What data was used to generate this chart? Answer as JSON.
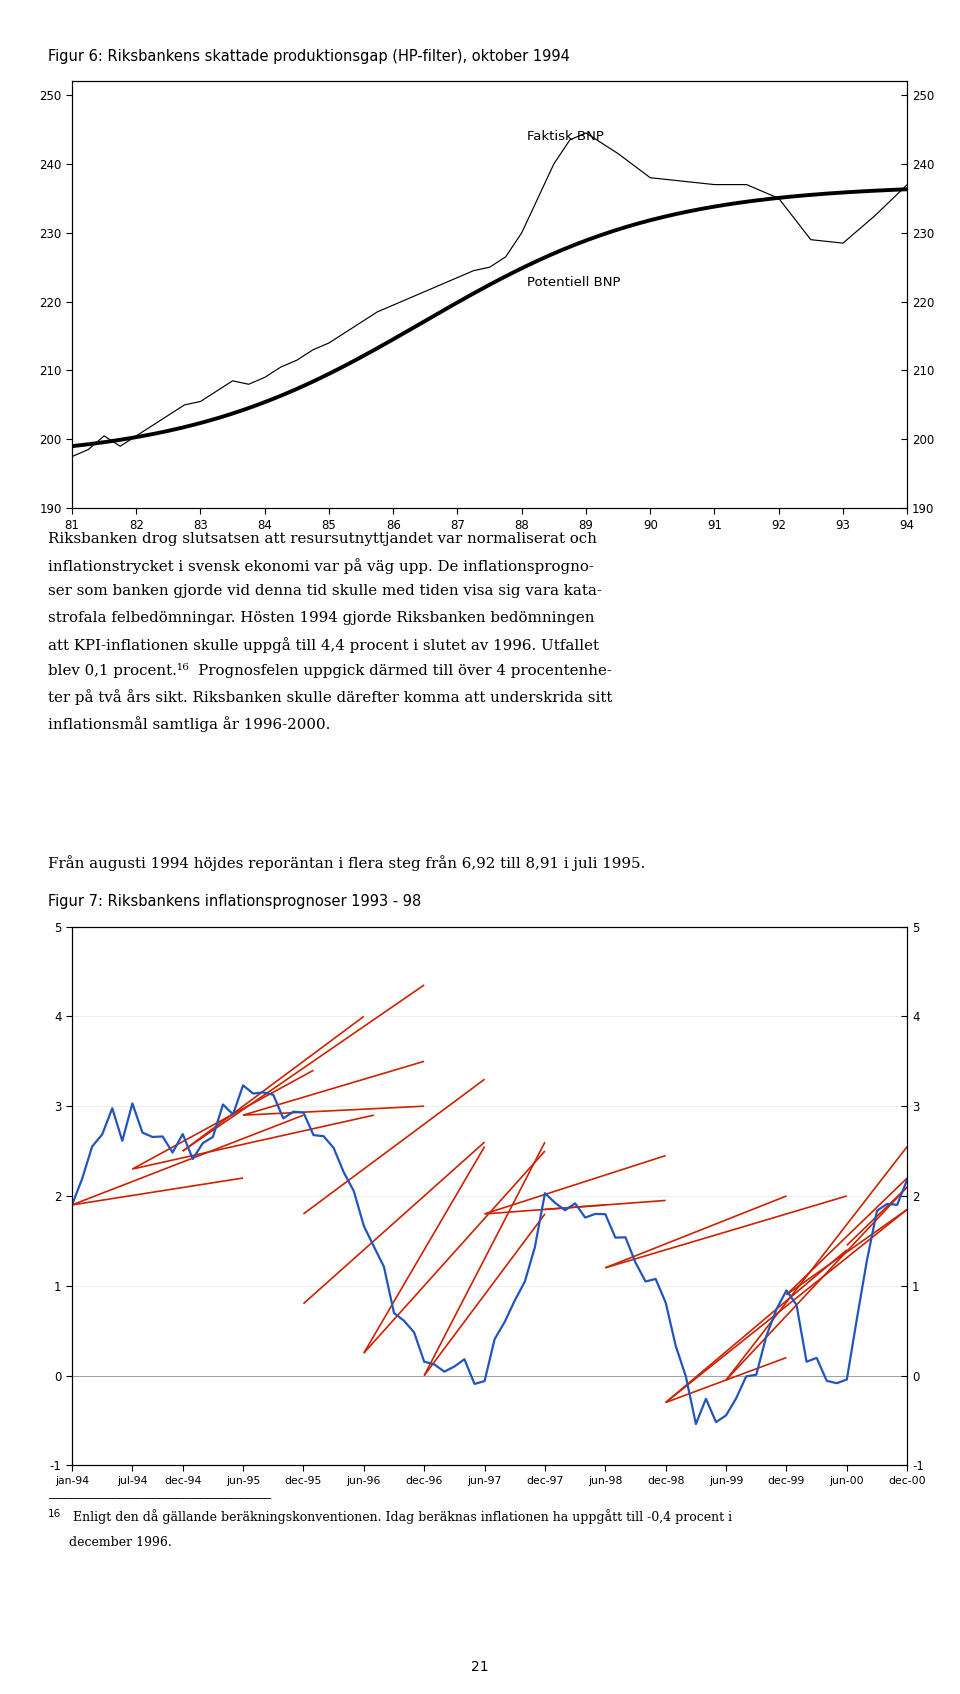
{
  "fig6_title": "Figur 6: Riksbankens skattade produktionsgap (HP-filter), oktober 1994",
  "fig6_xlabel_ticks": [
    "81",
    "82",
    "83",
    "84",
    "85",
    "86",
    "87",
    "88",
    "89",
    "90",
    "91",
    "92",
    "93",
    "94"
  ],
  "fig6_ylim": [
    190,
    252
  ],
  "fig6_yticks": [
    190,
    200,
    210,
    220,
    230,
    240,
    250
  ],
  "fig6_label_faktisk": "Faktisk BNP",
  "fig6_label_potentiell": "Potentiell BNP",
  "fig7_title": "Figur 7: Riksbankens inflationsprognoser 1993 - 98",
  "fig7_ylim": [
    -1,
    5
  ],
  "fig7_yticks": [
    -1,
    0,
    1,
    2,
    3,
    4,
    5
  ],
  "text1_lines": [
    "Riksbanken drog slutsatsen att resursutnyttjandet var normaliserat och",
    "inflationstrycket i svensk ekonomi var på väg upp. De inflationsprogno-",
    "ser som banken gjorde vid denna tid skulle med tiden visa sig vara kata-",
    "strofala felbedömningar. Hösten 1994 gjorde Riksbanken bedömningen",
    "att KPI-inflationen skulle uppgå till 4,4 procent i slutet av 1996. Utfallet",
    "blev 0,1 procent.¹⁶  Prognosfelen uppgick därmed till över 4 procentenhe-",
    "ter på två års sikt. Riksbanken skulle därefter komma att underskrida sitt",
    "inflationsmål samtliga år 1996-2000."
  ],
  "text2": "Från augusti 1994 höjdes reporäntan i flera steg från 6,92 till 8,91 i juli 1995.",
  "footnote_num": "16",
  "footnote_text": " Enligt den då gällande beräkningskonventionen. Idag beräknas inflationen ha uppgått till -0,4 procent i",
  "footnote_text2": "december 1996.",
  "page_number": "21",
  "background_color": "#ffffff",
  "line_color_black": "#000000",
  "line_color_blue": "#2255bb",
  "line_color_red": "#cc2200"
}
